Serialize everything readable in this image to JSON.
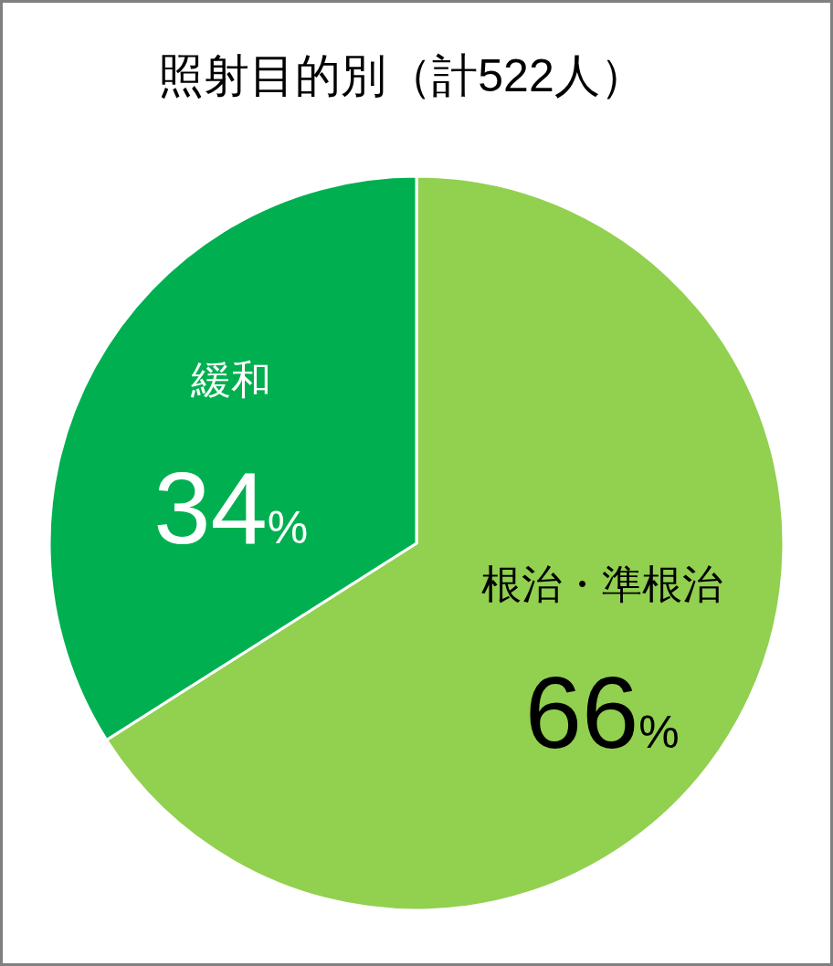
{
  "chart_data": {
    "type": "pie",
    "title": "照射目的別（計522人）",
    "categories": [
      "根治・準根治",
      "緩和"
    ],
    "values": [
      66,
      34
    ],
    "colors": [
      "#92d050",
      "#00b050"
    ],
    "value_labels": [
      "66%",
      "34%"
    ]
  }
}
